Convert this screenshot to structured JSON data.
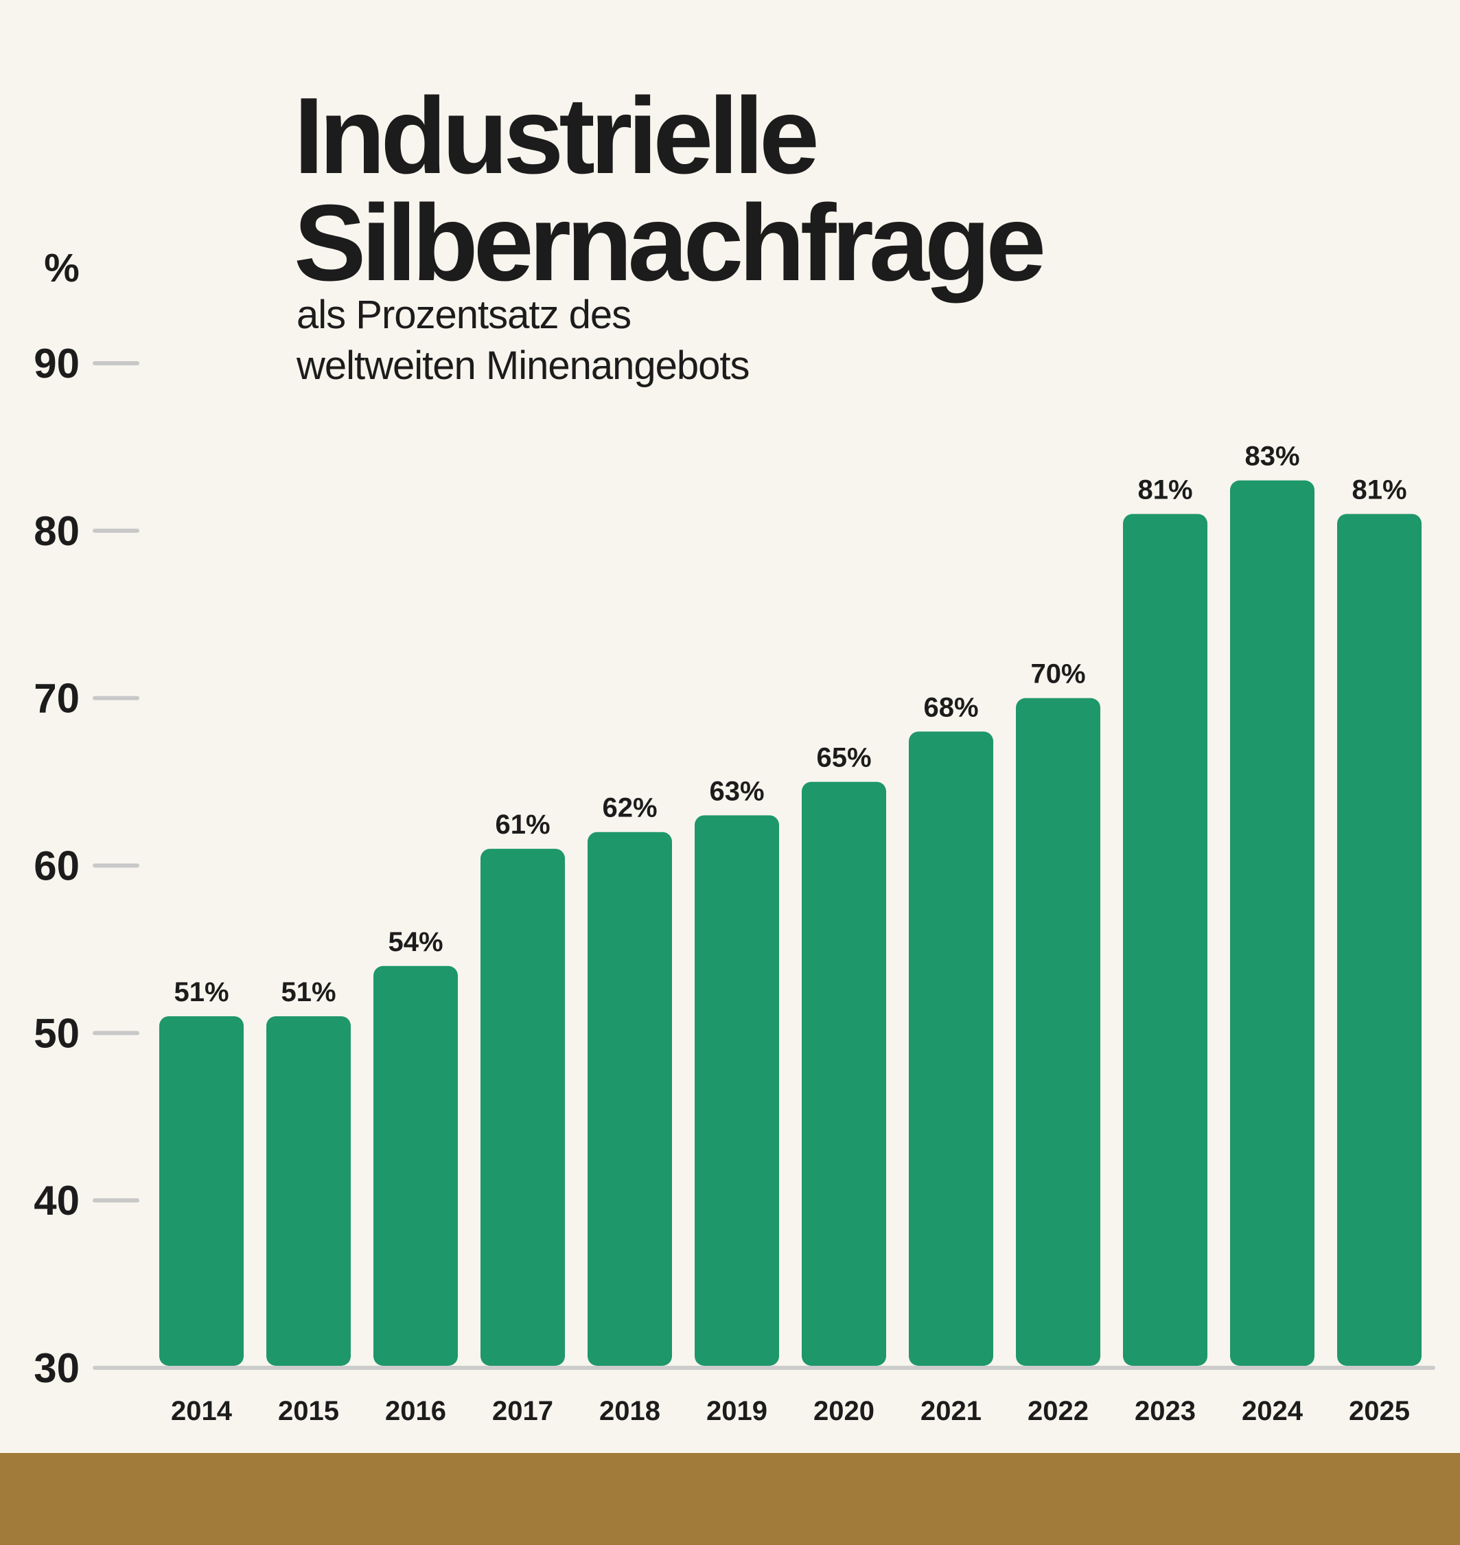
{
  "chart_data": {
    "type": "bar",
    "title": [
      "Industrielle",
      "Silbernachfrage"
    ],
    "subtitle": [
      "als Prozentsatz des",
      "weltweiten Minenangebots"
    ],
    "ylabel": "%",
    "xlabel": "",
    "ylim": [
      30,
      90
    ],
    "yticks": [
      30,
      40,
      50,
      60,
      70,
      80,
      90
    ],
    "categories": [
      "2014",
      "2015",
      "2016",
      "2017",
      "2018",
      "2019",
      "2020",
      "2021",
      "2022",
      "2023",
      "2024",
      "2025"
    ],
    "values": [
      51,
      51,
      54,
      61,
      62,
      63,
      65,
      68,
      70,
      81,
      83,
      81
    ],
    "data_labels": [
      "51%",
      "51%",
      "54%",
      "61%",
      "62%",
      "63%",
      "65%",
      "68%",
      "70%",
      "81%",
      "83%",
      "81%"
    ],
    "grid": false,
    "legend": "none"
  },
  "colors": {
    "background": "#f8f5ee",
    "bar": "#1e976a",
    "text": "#1c1c1c",
    "tick_mark": "#c8c8c8",
    "baseline": "#cccccc",
    "footer_band": "#a07b39"
  }
}
